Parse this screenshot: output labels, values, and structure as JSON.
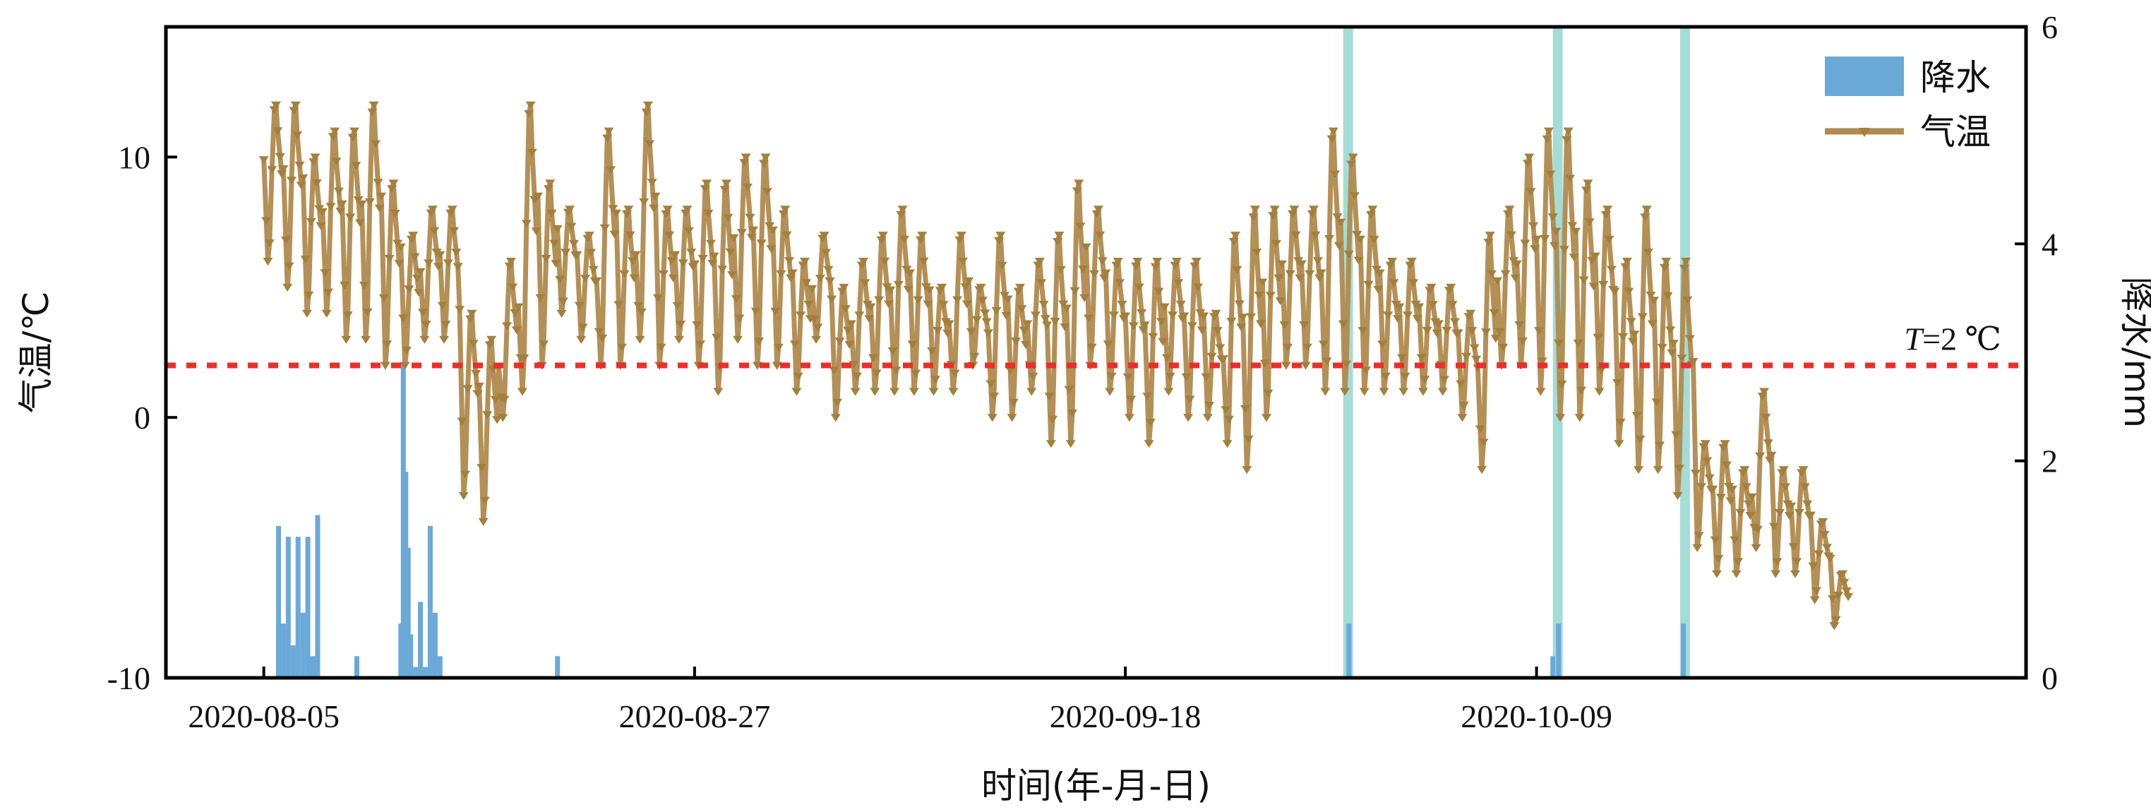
{
  "chart_data": {
    "type": "line",
    "xlabel": "时间(年-月-日)",
    "ylabel_left": "气温/℃",
    "ylabel_right": "降水/mm",
    "x_range": [
      "2020-07-31",
      "2020-11-03"
    ],
    "x_ticks": [
      "2020-08-05",
      "2020-08-27",
      "2020-09-18",
      "2020-10-09"
    ],
    "y_left_range": [
      -10,
      15
    ],
    "y_left_ticks": [
      "-10",
      "0",
      "10"
    ],
    "y_right_range": [
      0,
      6
    ],
    "y_right_ticks": [
      "0",
      "2",
      "4",
      "6"
    ],
    "threshold": {
      "value": 2,
      "label_italic": "T",
      "label_rest": "=2 ℃",
      "color": "#e8302a"
    },
    "highlight_bands": [
      {
        "start": "2020-09-29T03:00",
        "end": "2020-09-29T15:00"
      },
      {
        "start": "2020-10-09T20:00",
        "end": "2020-10-10T08:00"
      },
      {
        "start": "2020-10-16T08:00",
        "end": "2020-10-16T20:00"
      }
    ],
    "band_color": "#7ecdc4",
    "legend": {
      "position": "top-right",
      "items": [
        {
          "label": "降水",
          "kind": "bar",
          "color": "#6aa9d8"
        },
        {
          "label": "气温",
          "kind": "line",
          "color": "#b08a4e"
        }
      ]
    },
    "series": [
      {
        "name": "气温",
        "axis": "left",
        "color": "#b08a4e",
        "marker": "triangle-down",
        "x": [
          "2020-08-05",
          "2020-08-06",
          "2020-08-07",
          "2020-08-08",
          "2020-08-09",
          "2020-08-10",
          "2020-08-11",
          "2020-08-12",
          "2020-08-13",
          "2020-08-14",
          "2020-08-15",
          "2020-08-16",
          "2020-08-17",
          "2020-08-18",
          "2020-08-19",
          "2020-08-20",
          "2020-08-21",
          "2020-08-22",
          "2020-08-23",
          "2020-08-24",
          "2020-08-25",
          "2020-08-26",
          "2020-08-27",
          "2020-08-28",
          "2020-08-29",
          "2020-08-30",
          "2020-08-31",
          "2020-09-01",
          "2020-09-02",
          "2020-09-03",
          "2020-09-04",
          "2020-09-05",
          "2020-09-06",
          "2020-09-07",
          "2020-09-08",
          "2020-09-09",
          "2020-09-10",
          "2020-09-11",
          "2020-09-12",
          "2020-09-13",
          "2020-09-14",
          "2020-09-15",
          "2020-09-16",
          "2020-09-17",
          "2020-09-18",
          "2020-09-19",
          "2020-09-20",
          "2020-09-21",
          "2020-09-22",
          "2020-09-23",
          "2020-09-24",
          "2020-09-25",
          "2020-09-26",
          "2020-09-27",
          "2020-09-28",
          "2020-09-29",
          "2020-09-30",
          "2020-10-01",
          "2020-10-02",
          "2020-10-03",
          "2020-10-04",
          "2020-10-05",
          "2020-10-06",
          "2020-10-07",
          "2020-10-08",
          "2020-10-09",
          "2020-10-10",
          "2020-10-11",
          "2020-10-12",
          "2020-10-13",
          "2020-10-14",
          "2020-10-15",
          "2020-10-16",
          "2020-10-17",
          "2020-10-18",
          "2020-10-19",
          "2020-10-20",
          "2020-10-21",
          "2020-10-22",
          "2020-10-23",
          "2020-10-24"
        ],
        "min": [
          6,
          5,
          4,
          4,
          3,
          3,
          2,
          2,
          3,
          3,
          -3,
          -4,
          0,
          1,
          2,
          4,
          3,
          2,
          2,
          3,
          2,
          3,
          2,
          1,
          3,
          2,
          2,
          1,
          3,
          0,
          1,
          1,
          1,
          1,
          1,
          1,
          2,
          0,
          0,
          1,
          -1,
          -1,
          2,
          1,
          0,
          -1,
          1,
          0,
          0,
          -1,
          -2,
          0,
          2,
          2,
          1,
          1,
          1,
          1,
          1,
          1,
          1,
          0,
          -2,
          2,
          2,
          1,
          0,
          0,
          1,
          -1,
          -2,
          -2,
          -3,
          -5,
          -6,
          -6,
          -5,
          -6,
          -6,
          -7,
          -8
        ],
        "max": [
          12,
          12,
          10,
          11,
          11,
          12,
          9,
          7,
          8,
          8,
          4,
          3,
          6,
          12,
          9,
          8,
          7,
          11,
          8,
          12,
          8,
          8,
          9,
          9,
          10,
          10,
          8,
          6,
          7,
          5,
          6,
          7,
          8,
          7,
          5,
          7,
          5,
          7,
          5,
          6,
          7,
          9,
          8,
          6,
          6,
          6,
          6,
          6,
          4,
          7,
          8,
          8,
          8,
          8,
          11,
          10,
          8,
          6,
          6,
          5,
          5,
          4,
          7,
          8,
          10,
          11,
          11,
          9,
          8,
          6,
          8,
          6,
          6,
          -1,
          -1,
          -2,
          1,
          -2,
          -2,
          -4,
          -6
        ]
      },
      {
        "name": "降水",
        "axis": "right",
        "kind": "bar",
        "color": "#6aa9d8",
        "x": [
          "2020-08-05T18:00",
          "2020-08-06T00:00",
          "2020-08-06T06:00",
          "2020-08-06T12:00",
          "2020-08-06T18:00",
          "2020-08-07T00:00",
          "2020-08-07T06:00",
          "2020-08-07T12:00",
          "2020-08-07T18:00",
          "2020-08-09T18:00",
          "2020-08-12T00:00",
          "2020-08-12T03:00",
          "2020-08-12T06:00",
          "2020-08-12T09:00",
          "2020-08-12T12:00",
          "2020-08-12T18:00",
          "2020-08-13T00:00",
          "2020-08-13T06:00",
          "2020-08-13T12:00",
          "2020-08-13T18:00",
          "2020-08-14T00:00",
          "2020-08-20T00:00",
          "2020-09-29T10:00",
          "2020-10-09T20:00",
          "2020-10-10T03:00",
          "2020-10-16T12:00"
        ],
        "values": [
          1.4,
          0.5,
          1.3,
          0.3,
          1.3,
          0.6,
          1.3,
          0.2,
          1.5,
          0.2,
          0.5,
          2.9,
          1.9,
          1.2,
          0.4,
          0.1,
          0.7,
          0.1,
          1.4,
          0.6,
          0.2,
          0.2,
          0.5,
          0.2,
          0.5,
          0.5
        ]
      }
    ]
  }
}
